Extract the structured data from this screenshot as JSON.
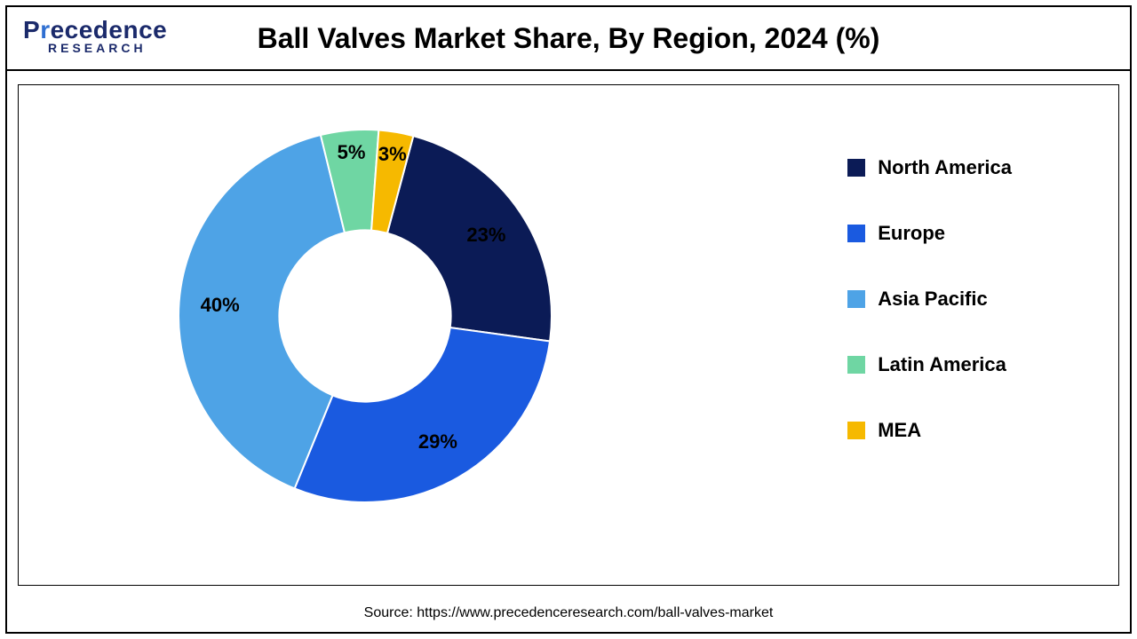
{
  "logo": {
    "top_prefix": "P",
    "top_accent": "r",
    "top_rest": "ecedence",
    "bottom": "RESEARCH",
    "color_main": "#1b2a6b",
    "color_accent": "#2f6fd1"
  },
  "title": "Ball Valves Market Share, By Region, 2024 (%)",
  "chart": {
    "type": "donut",
    "background_color": "#ffffff",
    "border_color": "#000000",
    "inner_radius_ratio": 0.46,
    "outer_radius": 210,
    "start_angle_deg": 15,
    "slices": [
      {
        "label": "North America",
        "value": 23,
        "color": "#0b1b56",
        "pct_text": "23%"
      },
      {
        "label": "Europe",
        "value": 29,
        "color": "#1a5ae0",
        "pct_text": "29%"
      },
      {
        "label": "Asia Pacific",
        "value": 40,
        "color": "#4ea3e6",
        "pct_text": "40%"
      },
      {
        "label": "Latin America",
        "value": 5,
        "color": "#6fd6a3",
        "pct_text": "5%"
      },
      {
        "label": "MEA",
        "value": 3,
        "color": "#f6b900",
        "pct_text": "3%"
      }
    ],
    "label_fontsize": 22,
    "label_fontweight": 700,
    "label_radius_factor": 1.02
  },
  "legend": {
    "items": [
      {
        "label": "North America",
        "color": "#0b1b56"
      },
      {
        "label": "Europe",
        "color": "#1a5ae0"
      },
      {
        "label": "Asia Pacific",
        "color": "#4ea3e6"
      },
      {
        "label": "Latin America",
        "color": "#6fd6a3"
      },
      {
        "label": "MEA",
        "color": "#f6b900"
      }
    ],
    "box_size": 20,
    "fontsize": 22,
    "fontweight": 700
  },
  "source": "Source: https://www.precedenceresearch.com/ball-valves-market",
  "title_fontsize": 32,
  "title_fontweight": 700
}
